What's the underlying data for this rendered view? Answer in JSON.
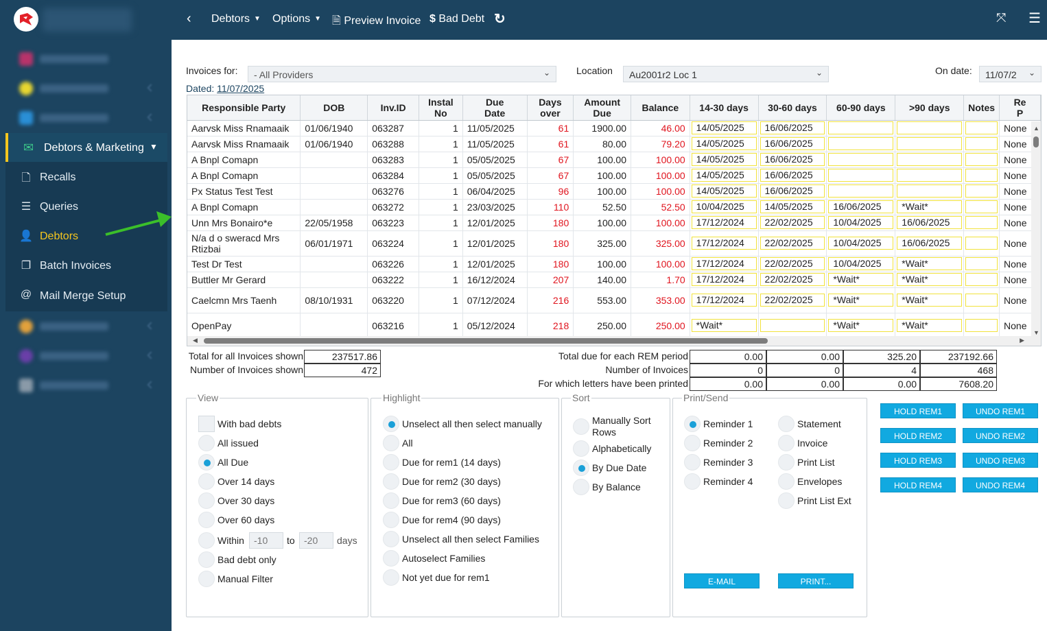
{
  "topbar": {
    "debtors_label": "Debtors",
    "options_label": "Options",
    "preview_invoice_label": "Preview Invoice",
    "bad_debt_label": "Bad Debt"
  },
  "sidebar": {
    "section_label": "Debtors & Marketing",
    "items": [
      {
        "label": "Recalls",
        "icon": "recall-document-icon"
      },
      {
        "label": "Queries",
        "icon": "queries-list-icon"
      },
      {
        "label": "Debtors",
        "icon": "debtors-user-icon"
      },
      {
        "label": "Batch Invoices",
        "icon": "batch-copy-icon"
      },
      {
        "label": "Mail Merge Setup",
        "icon": "mail-merge-icon"
      }
    ]
  },
  "filters": {
    "invoices_for_label": "Invoices for:",
    "invoices_for_value": "- All Providers",
    "location_label": "Location",
    "location_value": "Au2001r2 Loc 1",
    "on_date_label": "On date:",
    "on_date_value": "11/07/2",
    "dated_label": "Dated:",
    "dated_value": "11/07/2025"
  },
  "table": {
    "headers": [
      "Responsible Party",
      "DOB",
      "Inv.ID",
      "Instal\nNo",
      "Due\nDate",
      "Days\nover",
      "Amount\nDue",
      "Balance",
      "14-30 days",
      "30-60 days",
      "60-90 days",
      ">90 days",
      "Notes",
      "Re\nP"
    ],
    "rows": [
      {
        "party": "Aarvsk Miss Rnamaaik",
        "dob": "01/06/1940",
        "inv": "063287",
        "instal": "1",
        "due": "11/05/2025",
        "days": "61",
        "amount": "1900.00",
        "balance": "46.00",
        "r1": "14/05/2025",
        "r2": "16/06/2025",
        "r3": "",
        "r4": "",
        "notes": "",
        "rp": "None"
      },
      {
        "party": "Aarvsk Miss Rnamaaik",
        "dob": "01/06/1940",
        "inv": "063288",
        "instal": "1",
        "due": "11/05/2025",
        "days": "61",
        "amount": "80.00",
        "balance": "79.20",
        "r1": "14/05/2025",
        "r2": "16/06/2025",
        "r3": "",
        "r4": "",
        "notes": "",
        "rp": "None"
      },
      {
        "party": "A Bnpl Comapn",
        "dob": "",
        "inv": "063283",
        "instal": "1",
        "due": "05/05/2025",
        "days": "67",
        "amount": "100.00",
        "balance": "100.00",
        "r1": "14/05/2025",
        "r2": "16/06/2025",
        "r3": "",
        "r4": "",
        "notes": "",
        "rp": "None"
      },
      {
        "party": "A Bnpl Comapn",
        "dob": "",
        "inv": "063284",
        "instal": "1",
        "due": "05/05/2025",
        "days": "67",
        "amount": "100.00",
        "balance": "100.00",
        "r1": "14/05/2025",
        "r2": "16/06/2025",
        "r3": "",
        "r4": "",
        "notes": "",
        "rp": "None"
      },
      {
        "party": "Px Status Test Test",
        "dob": "",
        "inv": "063276",
        "instal": "1",
        "due": "06/04/2025",
        "days": "96",
        "amount": "100.00",
        "balance": "100.00",
        "r1": "14/05/2025",
        "r2": "16/06/2025",
        "r3": "",
        "r4": "",
        "notes": "",
        "rp": "None"
      },
      {
        "party": "A Bnpl Comapn",
        "dob": "",
        "inv": "063272",
        "instal": "1",
        "due": "23/03/2025",
        "days": "110",
        "amount": "52.50",
        "balance": "52.50",
        "r1": "10/04/2025",
        "r2": "14/05/2025",
        "r3": "16/06/2025",
        "r4": "*Wait*",
        "notes": "",
        "rp": "None"
      },
      {
        "party": "Unn Mrs Bonairo*e",
        "dob": "22/05/1958",
        "inv": "063223",
        "instal": "1",
        "due": "12/01/2025",
        "days": "180",
        "amount": "100.00",
        "balance": "100.00",
        "r1": "17/12/2024",
        "r2": "22/02/2025",
        "r3": "10/04/2025",
        "r4": "16/06/2025",
        "notes": "",
        "rp": "None"
      },
      {
        "party": "N/a d o sweracd Mrs Rtizbai",
        "dob": "06/01/1971",
        "inv": "063224",
        "instal": "1",
        "due": "12/01/2025",
        "days": "180",
        "amount": "325.00",
        "balance": "325.00",
        "r1": "17/12/2024",
        "r2": "22/02/2025",
        "r3": "10/04/2025",
        "r4": "16/06/2025",
        "notes": "",
        "rp": "None"
      },
      {
        "party": "Test Dr Test",
        "dob": "",
        "inv": "063226",
        "instal": "1",
        "due": "12/01/2025",
        "days": "180",
        "amount": "100.00",
        "balance": "100.00",
        "r1": "17/12/2024",
        "r2": "22/02/2025",
        "r3": "10/04/2025",
        "r4": "*Wait*",
        "notes": "",
        "rp": "None"
      },
      {
        "party": "Buttler Mr Gerard",
        "dob": "",
        "inv": "063222",
        "instal": "1",
        "due": "16/12/2024",
        "days": "207",
        "amount": "140.00",
        "balance": "1.70",
        "r1": "17/12/2024",
        "r2": "22/02/2025",
        "r3": "*Wait*",
        "r4": "*Wait*",
        "notes": "",
        "rp": "None"
      },
      {
        "party": "Caelcmn Mrs Taenh",
        "dob": "08/10/1931",
        "inv": "063220",
        "instal": "1",
        "due": "07/12/2024",
        "days": "216",
        "amount": "553.00",
        "balance": "353.00",
        "r1": "17/12/2024",
        "r2": "22/02/2025",
        "r3": "*Wait*",
        "r4": "*Wait*",
        "notes": "",
        "rp": "None"
      },
      {
        "party": "OpenPay",
        "dob": "",
        "inv": "063216",
        "instal": "1",
        "due": "05/12/2024",
        "days": "218",
        "amount": "250.00",
        "balance": "250.00",
        "r1": "*Wait*",
        "r2": "",
        "r3": "*Wait*",
        "r4": "*Wait*",
        "notes": "",
        "rp": "None"
      }
    ]
  },
  "summary": {
    "total_label": "Total for all Invoices shown",
    "total_value": "237517.86",
    "count_label": "Number of Invoices shown",
    "count_value": "472",
    "rem_due_label": "Total due for each REM period",
    "rem_due": [
      "0.00",
      "0.00",
      "325.20",
      "237192.66"
    ],
    "rem_count_label": "Number of Invoices",
    "rem_count": [
      "0",
      "0",
      "4",
      "468"
    ],
    "rem_printed_label": "For which letters have been printed",
    "rem_printed": [
      "0.00",
      "0.00",
      "0.00",
      "7608.20"
    ]
  },
  "view": {
    "legend": "View",
    "bad_debts": "With bad debts",
    "all_issued": "All issued",
    "all_due": "All Due",
    "over14": "Over 14 days",
    "over30": "Over 30 days",
    "over60": "Over 60 days",
    "within": "Within",
    "within_from": "-10",
    "to": "to",
    "within_to": "-20",
    "days": "days",
    "bad_debt_only": "Bad debt only",
    "manual_filter": "Manual Filter"
  },
  "highlight": {
    "legend": "Highlight",
    "options": [
      "Unselect all then select manually",
      "All",
      "Due for rem1 (14 days)",
      "Due for rem2 (30 days)",
      "Due for rem3 (60 days)",
      "Due for rem4 (90 days)",
      "Unselect all then select Families",
      "Autoselect Families",
      "Not yet due for rem1"
    ]
  },
  "sort": {
    "legend": "Sort",
    "manual_line1": "Manually Sort",
    "manual_line2": "Rows",
    "alpha": "Alphabetically",
    "due_date": "By Due Date",
    "balance": "By Balance"
  },
  "print_send": {
    "legend": "Print/Send",
    "reminders": [
      "Reminder 1",
      "Reminder 2",
      "Reminder 3",
      "Reminder 4"
    ],
    "docs": [
      "Statement",
      "Invoice",
      "Print List",
      "Envelopes",
      "Print List Ext"
    ],
    "email_btn": "E-MAIL",
    "print_btn": "PRINT..."
  },
  "hold_buttons": [
    "HOLD REM1",
    "HOLD REM2",
    "HOLD REM3",
    "HOLD REM4"
  ],
  "undo_buttons": [
    "UNDO REM1",
    "UNDO REM2",
    "UNDO REM3",
    "UNDO REM4"
  ],
  "colors": {
    "sidebar": "#1c4460",
    "accent": "#f6c61e",
    "button": "#11a9e0",
    "overdue": "#e0141e",
    "reminder_border": "#f1e23b"
  }
}
